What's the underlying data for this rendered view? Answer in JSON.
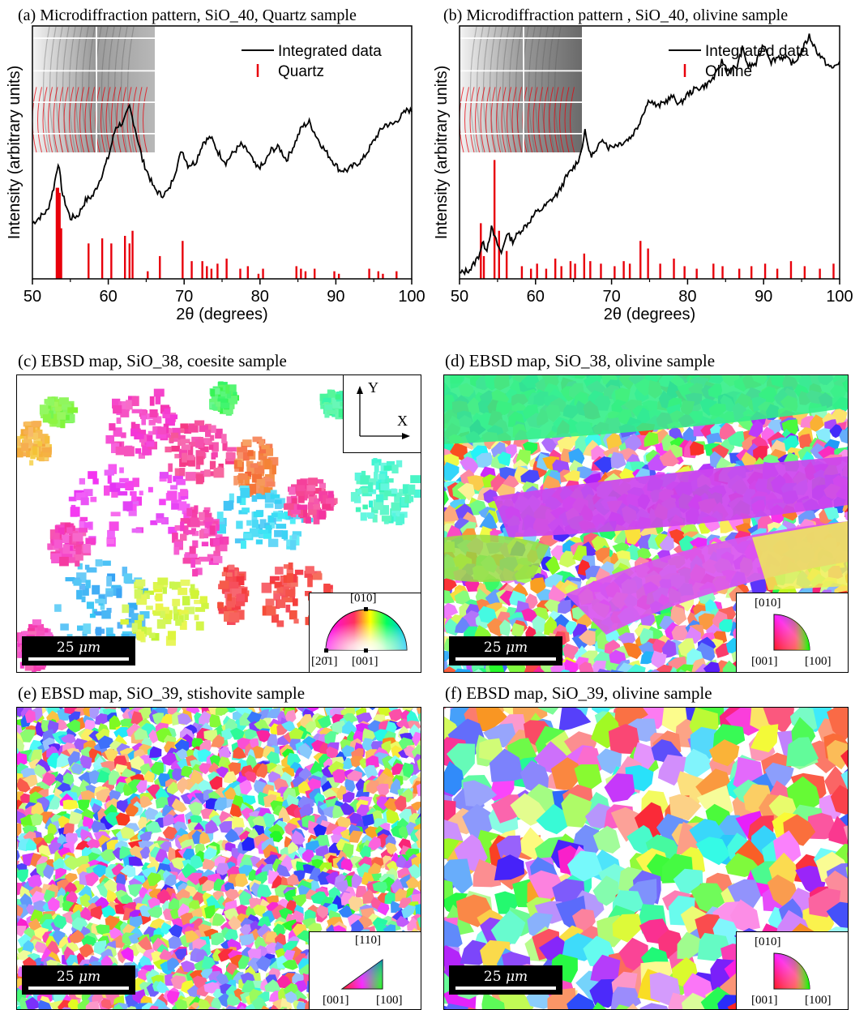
{
  "panels": {
    "a": {
      "title": "(a) Microdiffraction pattern, SiO_40, Quartz sample"
    },
    "b": {
      "title": "(b) Microdiffraction pattern , SiO_40, olivine sample"
    },
    "c": {
      "title": "(c) EBSD map, SiO_38, coesite sample"
    },
    "d": {
      "title": "(d) EBSD map, SiO_38, olivine sample"
    },
    "e": {
      "title": "(e) EBSD map, SiO_39, stishovite sample"
    },
    "f": {
      "title": "(f) EBSD map, SiO_39, olivine sample"
    }
  },
  "chart_data": [
    {
      "type": "line",
      "panel": "a",
      "xlabel": "2θ (degrees)",
      "ylabel": "Intensity (arbitrary units)",
      "xlim": [
        50,
        100
      ],
      "xticks": [
        50,
        60,
        70,
        80,
        90,
        100
      ],
      "legend": {
        "placement": "top-right",
        "entries": [
          "Integrated data",
          "Quartz"
        ]
      },
      "series": [
        {
          "name": "Integrated data",
          "color": "#000000",
          "x": [
            50,
            52,
            52.8,
            53.4,
            54,
            55,
            56,
            57,
            58,
            59,
            60,
            61,
            62,
            62.8,
            63.5,
            64.5,
            66,
            67,
            68,
            69,
            69.7,
            70.5,
            71.5,
            72.5,
            73.5,
            74.5,
            75.5,
            76.5,
            77.5,
            78.5,
            79.5,
            80.5,
            81.5,
            82.5,
            83.5,
            84.5,
            85.5,
            86.5,
            87.5,
            88.5,
            89.5,
            90.5,
            91.5,
            92.5,
            93.5,
            94.5,
            95.5,
            96.5,
            97.5,
            98.5,
            99.5,
            100
          ],
          "y": [
            0.22,
            0.27,
            0.36,
            0.46,
            0.33,
            0.24,
            0.25,
            0.31,
            0.33,
            0.4,
            0.48,
            0.6,
            0.62,
            0.68,
            0.6,
            0.47,
            0.36,
            0.33,
            0.35,
            0.44,
            0.51,
            0.45,
            0.46,
            0.54,
            0.56,
            0.5,
            0.46,
            0.5,
            0.53,
            0.5,
            0.44,
            0.45,
            0.51,
            0.52,
            0.47,
            0.53,
            0.6,
            0.62,
            0.56,
            0.51,
            0.47,
            0.43,
            0.43,
            0.45,
            0.47,
            0.52,
            0.57,
            0.61,
            0.61,
            0.64,
            0.67,
            0.66
          ]
        },
        {
          "name": "Quartz",
          "type": "stick",
          "color": "#e8000b",
          "x": [
            53.2,
            53.4,
            53.6,
            53.8,
            57.4,
            59.2,
            60.4,
            62.2,
            62.8,
            63.2,
            65.2,
            66.8,
            69.8,
            71,
            72.4,
            73,
            73.6,
            74.4,
            75.6,
            77.4,
            78.4,
            79.8,
            80.4,
            84.8,
            85.4,
            86,
            87.2,
            89.8,
            90.4,
            94.4,
            95.6,
            96.2,
            98
          ],
          "y": [
            0.36,
            0.36,
            0.34,
            0.2,
            0.14,
            0.16,
            0.14,
            0.17,
            0.14,
            0.19,
            0.03,
            0.09,
            0.15,
            0.07,
            0.07,
            0.05,
            0.04,
            0.06,
            0.08,
            0.04,
            0.05,
            0.02,
            0.04,
            0.05,
            0.04,
            0.03,
            0.04,
            0.03,
            0.02,
            0.04,
            0.03,
            0.02,
            0.03
          ]
        }
      ]
    },
    {
      "type": "line",
      "panel": "b",
      "xlabel": "2θ (degrees)",
      "ylabel": "Intensity (arbitrary units)",
      "xlim": [
        50,
        100
      ],
      "xticks": [
        50,
        60,
        70,
        80,
        90,
        100
      ],
      "legend": {
        "placement": "top-right",
        "entries": [
          "Integrated data",
          "Olivine"
        ]
      },
      "series": [
        {
          "name": "Integrated data",
          "color": "#000000",
          "x": [
            50,
            51.5,
            52.5,
            53,
            53.6,
            54.2,
            54.8,
            55.5,
            56.2,
            57,
            58,
            59,
            60,
            61,
            62,
            63,
            64,
            65,
            65.8,
            66.5,
            67.2,
            68,
            68.8,
            69.6,
            70.5,
            71.5,
            72.5,
            73.4,
            74.2,
            75,
            76,
            77,
            78,
            79,
            80,
            81,
            82,
            83,
            83.8,
            84.5,
            85.5,
            86.5,
            87.2,
            88,
            89,
            90,
            91,
            92,
            93,
            94,
            95,
            96,
            97,
            98,
            99,
            100
          ],
          "y": [
            0.02,
            0.04,
            0.09,
            0.14,
            0.12,
            0.2,
            0.15,
            0.1,
            0.18,
            0.15,
            0.19,
            0.22,
            0.26,
            0.28,
            0.31,
            0.34,
            0.4,
            0.44,
            0.48,
            0.58,
            0.49,
            0.5,
            0.56,
            0.52,
            0.53,
            0.54,
            0.56,
            0.6,
            0.66,
            0.71,
            0.68,
            0.7,
            0.72,
            0.69,
            0.73,
            0.75,
            0.76,
            0.78,
            0.81,
            0.86,
            0.82,
            0.84,
            0.91,
            0.84,
            0.85,
            0.93,
            0.86,
            0.88,
            0.87,
            0.85,
            0.9,
            0.96,
            0.9,
            0.86,
            0.83,
            0.86
          ]
        },
        {
          "name": "Olivine",
          "type": "stick",
          "color": "#e8000b",
          "x": [
            52.8,
            53.2,
            54.6,
            55.2,
            56.2,
            58.2,
            59.4,
            60.2,
            61.4,
            62.6,
            63.4,
            64.6,
            65.2,
            66.4,
            67.2,
            68.6,
            70.4,
            71.6,
            72.4,
            73.8,
            74.8,
            76.4,
            78.2,
            79.6,
            81.2,
            83.4,
            84.6,
            86.8,
            88.4,
            90.2,
            91.8,
            93.6,
            95.4,
            97.4,
            99.2
          ],
          "y": [
            0.22,
            0.09,
            0.47,
            0.19,
            0.11,
            0.05,
            0.04,
            0.06,
            0.04,
            0.08,
            0.05,
            0.07,
            0.06,
            0.1,
            0.07,
            0.06,
            0.05,
            0.07,
            0.06,
            0.15,
            0.12,
            0.06,
            0.08,
            0.05,
            0.04,
            0.06,
            0.05,
            0.04,
            0.05,
            0.06,
            0.04,
            0.07,
            0.05,
            0.04,
            0.06
          ]
        }
      ]
    }
  ],
  "ebsd": {
    "c": {
      "scale_value": "25",
      "scale_unit": "μm",
      "ipf_labels": [
        "[010]",
        "[20̄1]",
        "[001]"
      ],
      "axes": {
        "y": "Y",
        "x": "X"
      }
    },
    "d": {
      "scale_value": "25",
      "scale_unit": "μm",
      "ipf_labels": [
        "[010]",
        "[001]",
        "[100]"
      ]
    },
    "e": {
      "scale_value": "25",
      "scale_unit": "μm",
      "ipf_labels": [
        "[110]",
        "[001]",
        "[100]"
      ]
    },
    "f": {
      "scale_value": "25",
      "scale_unit": "μm",
      "ipf_labels": [
        "[010]",
        "[001]",
        "[100]"
      ]
    }
  }
}
